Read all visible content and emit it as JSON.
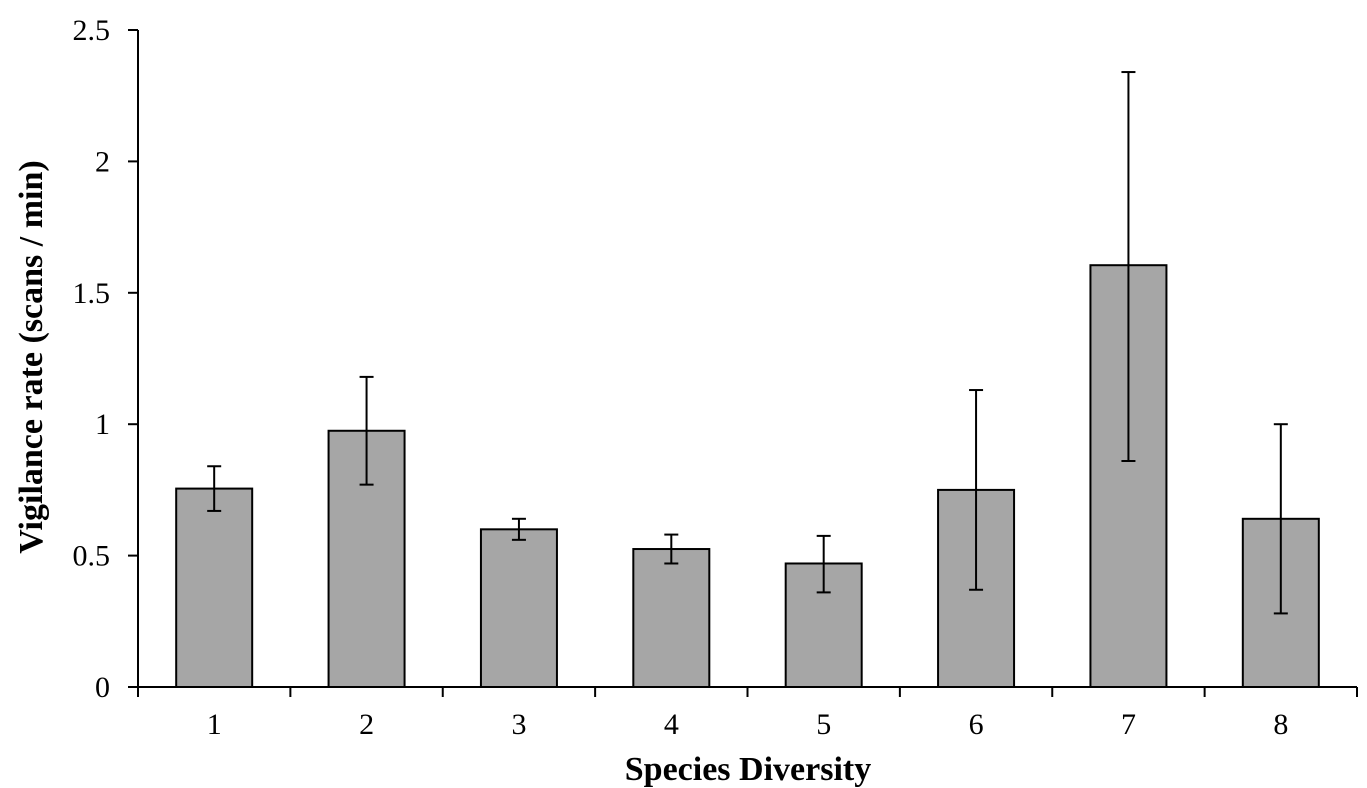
{
  "chart_data": {
    "type": "bar",
    "title": "",
    "xlabel": "Species Diversity",
    "ylabel": "Vigilance rate (scans / min)",
    "categories": [
      "1",
      "2",
      "3",
      "4",
      "5",
      "6",
      "7",
      "8"
    ],
    "values": [
      0.755,
      0.975,
      0.6,
      0.525,
      0.47,
      0.75,
      1.605,
      0.64
    ],
    "error_low": [
      0.67,
      0.77,
      0.56,
      0.47,
      0.36,
      0.37,
      0.86,
      0.28
    ],
    "error_high": [
      0.84,
      1.18,
      0.64,
      0.58,
      0.575,
      1.13,
      2.34,
      1.0
    ],
    "ylim": [
      0,
      2.5
    ],
    "yticks": [
      "0",
      "0.5",
      "1",
      "1.5",
      "2",
      "2.5"
    ],
    "ytick_values": [
      0,
      0.5,
      1,
      1.5,
      2,
      2.5
    ],
    "grid": false,
    "legend": "none",
    "colors": {
      "bar_fill": "#a6a6a6",
      "bar_stroke": "#000000"
    }
  }
}
